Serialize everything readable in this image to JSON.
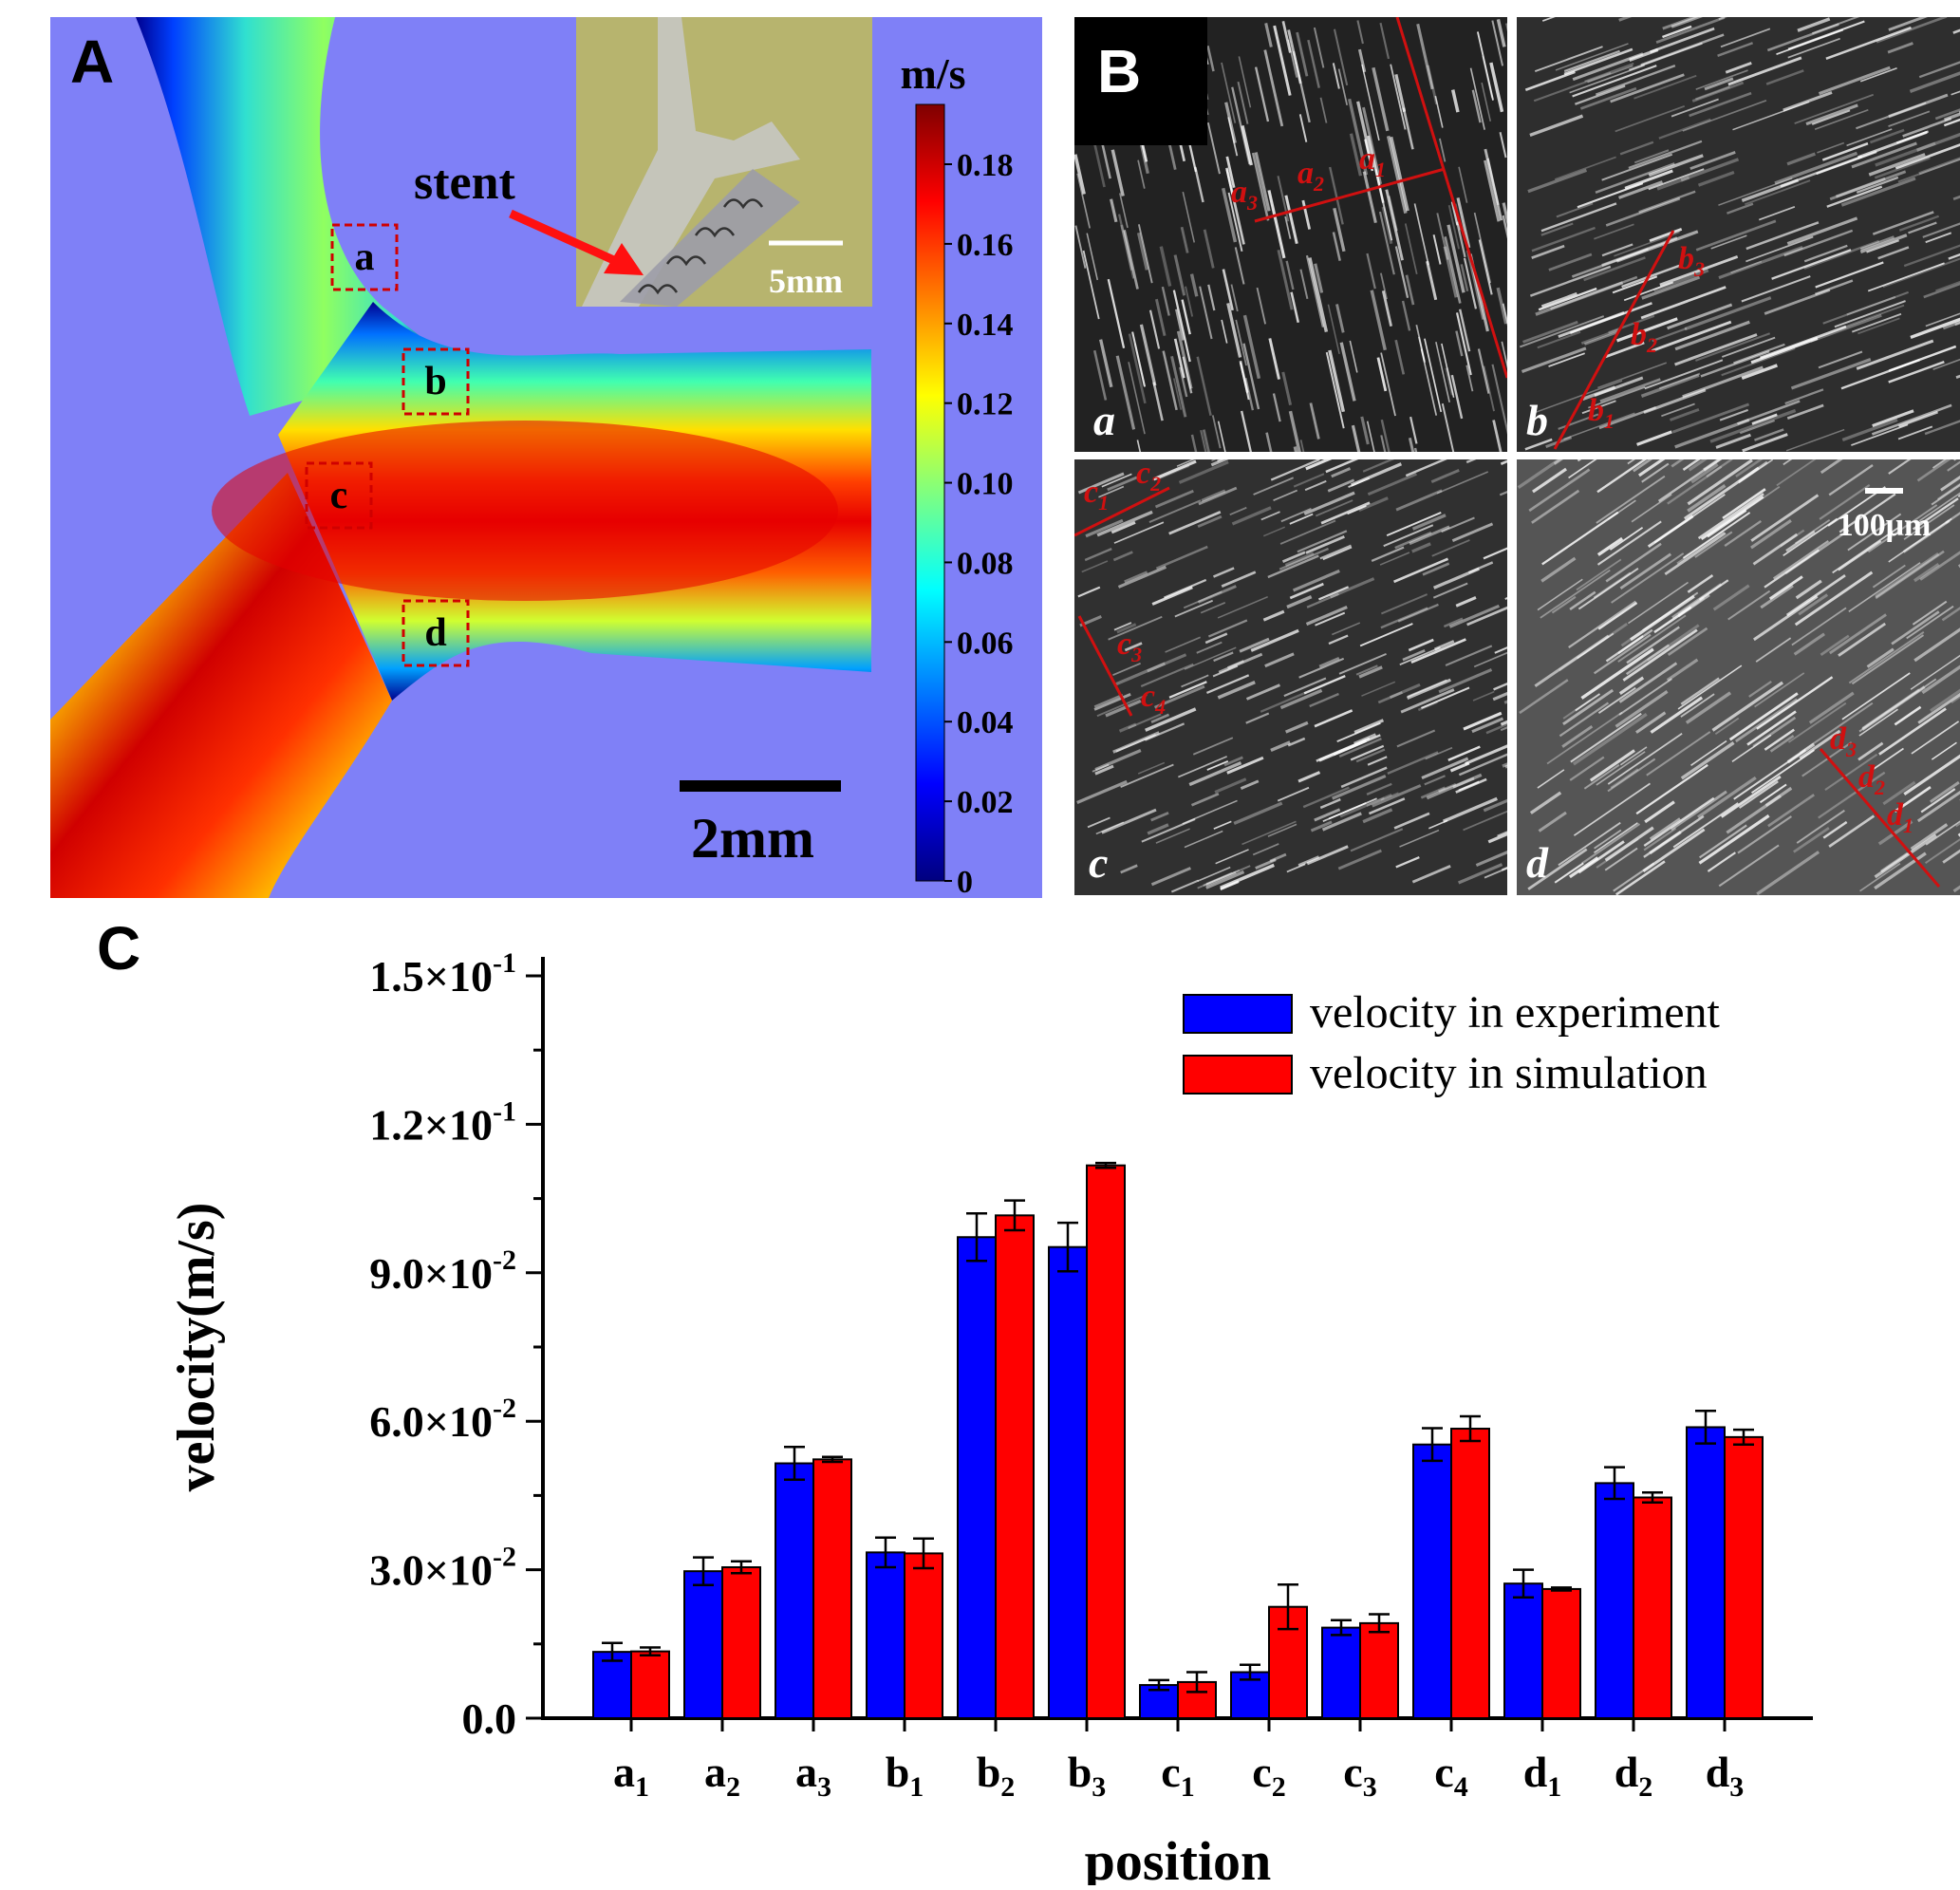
{
  "panels": {
    "a_letter": "A",
    "b_letter": "B",
    "c_letter": "C"
  },
  "panel_a": {
    "colorbar_unit": "m/s",
    "colorbar_ticks": [
      "0.18",
      "0.16",
      "0.14",
      "0.12",
      "0.10",
      "0.08",
      "0.06",
      "0.04",
      "0.02",
      "0"
    ],
    "stent_label": "stent",
    "inset_scale": "5mm",
    "scale_bar": "2mm",
    "regions": [
      "a",
      "b",
      "c",
      "d"
    ]
  },
  "panel_b": {
    "subpanels": [
      "a",
      "b",
      "c",
      "d"
    ],
    "scale_bar": "100μm",
    "line_labels": {
      "a": [
        {
          "base": "a",
          "sub": "3"
        },
        {
          "base": "a",
          "sub": "2"
        },
        {
          "base": "a",
          "sub": "1"
        }
      ],
      "b": [
        {
          "base": "b",
          "sub": "3"
        },
        {
          "base": "b",
          "sub": "2"
        },
        {
          "base": "b",
          "sub": "1"
        }
      ],
      "c": [
        {
          "base": "c",
          "sub": "1"
        },
        {
          "base": "c",
          "sub": "2"
        },
        {
          "base": "c",
          "sub": "3"
        },
        {
          "base": "c",
          "sub": "4"
        }
      ],
      "d": [
        {
          "base": "d",
          "sub": "3"
        },
        {
          "base": "d",
          "sub": "2"
        },
        {
          "base": "d",
          "sub": "1"
        }
      ]
    }
  },
  "chart_data": {
    "type": "bar",
    "xlabel": "position",
    "ylabel": "velocity(m/s)",
    "ylim": [
      0,
      0.15
    ],
    "yticks": [
      {
        "value": 0.0,
        "label": "0.0"
      },
      {
        "value": 0.03,
        "label": "3.0×10",
        "exp": "-2"
      },
      {
        "value": 0.06,
        "label": "6.0×10",
        "exp": "-2"
      },
      {
        "value": 0.09,
        "label": "9.0×10",
        "exp": "-2"
      },
      {
        "value": 0.12,
        "label": "1.2×10",
        "exp": "-1"
      },
      {
        "value": 0.15,
        "label": "1.5×10",
        "exp": "-1"
      }
    ],
    "categories": [
      {
        "base": "a",
        "sub": "1"
      },
      {
        "base": "a",
        "sub": "2"
      },
      {
        "base": "a",
        "sub": "3"
      },
      {
        "base": "b",
        "sub": "1"
      },
      {
        "base": "b",
        "sub": "2"
      },
      {
        "base": "b",
        "sub": "3"
      },
      {
        "base": "c",
        "sub": "1"
      },
      {
        "base": "c",
        "sub": "2"
      },
      {
        "base": "c",
        "sub": "3"
      },
      {
        "base": "c",
        "sub": "4"
      },
      {
        "base": "d",
        "sub": "1"
      },
      {
        "base": "d",
        "sub": "2"
      },
      {
        "base": "d",
        "sub": "3"
      }
    ],
    "legend_position": "top-right",
    "series": [
      {
        "name": "velocity in experiment",
        "color": "#0000ff",
        "values": [
          0.0134,
          0.0297,
          0.0515,
          0.0335,
          0.0972,
          0.0952,
          0.0067,
          0.0093,
          0.0183,
          0.0553,
          0.0272,
          0.0475,
          0.0588
        ],
        "errors": [
          0.0018,
          0.0028,
          0.0033,
          0.003,
          0.0048,
          0.0049,
          0.001,
          0.0015,
          0.0015,
          0.0033,
          0.0028,
          0.0032,
          0.0033
        ]
      },
      {
        "name": "velocity in simulation",
        "color": "#ff0000",
        "values": [
          0.0135,
          0.0305,
          0.0523,
          0.0333,
          0.1016,
          0.1117,
          0.0073,
          0.0225,
          0.0192,
          0.0585,
          0.0261,
          0.0446,
          0.0568
        ],
        "errors": [
          0.0008,
          0.0012,
          0.0005,
          0.003,
          0.003,
          0.0005,
          0.002,
          0.0045,
          0.0018,
          0.0025,
          0.0003,
          0.001,
          0.0015
        ]
      }
    ]
  }
}
